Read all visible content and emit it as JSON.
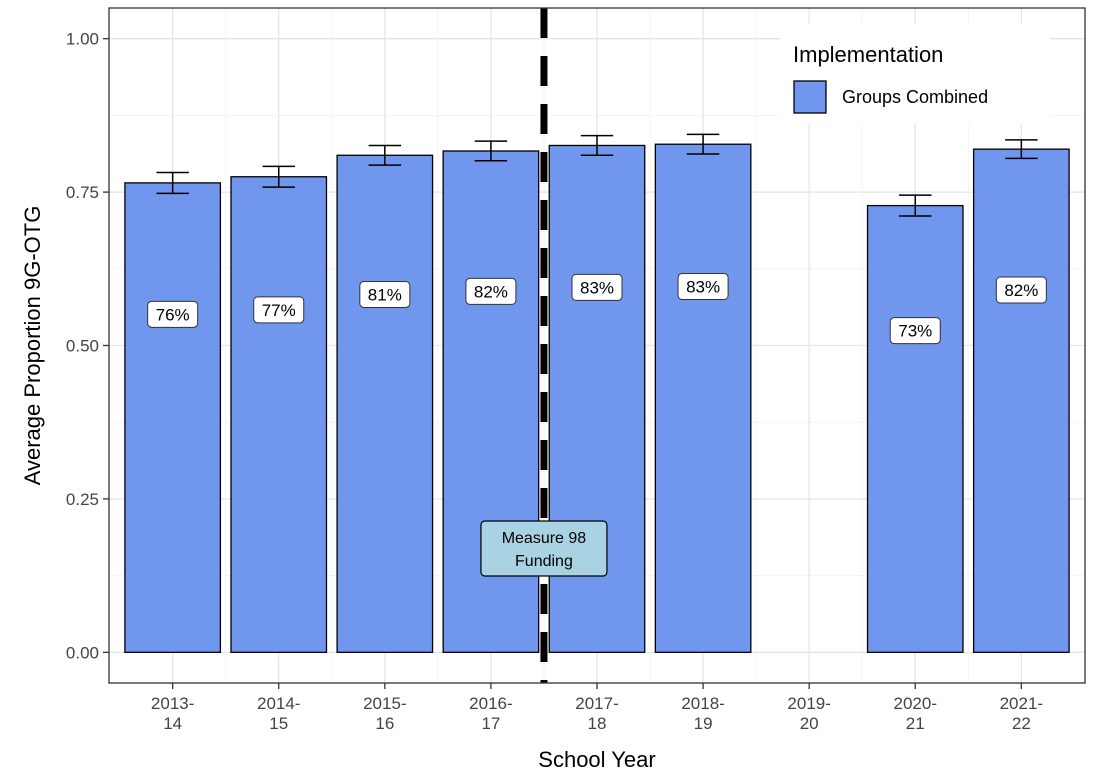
{
  "chart_data": {
    "type": "bar",
    "title": "",
    "xlabel": "School Year",
    "ylabel": "Average Proportion 9G-OTG",
    "ylim": [
      -0.05,
      1.05
    ],
    "yticks": [
      0.0,
      0.25,
      0.5,
      0.75,
      1.0
    ],
    "ytick_labels": [
      "0.00",
      "0.25",
      "0.50",
      "0.75",
      "1.00"
    ],
    "grid": true,
    "categories": [
      [
        "2013-",
        "14"
      ],
      [
        "2014-",
        "15"
      ],
      [
        "2015-",
        "16"
      ],
      [
        "2016-",
        "17"
      ],
      [
        "2017-",
        "18"
      ],
      [
        "2018-",
        "19"
      ],
      [
        "2019-",
        "20"
      ],
      [
        "2020-",
        "21"
      ],
      [
        "2021-",
        "22"
      ]
    ],
    "series": [
      {
        "name": "Groups Combined",
        "color": "#7097ED",
        "values": [
          0.765,
          0.775,
          0.81,
          0.817,
          0.826,
          0.828,
          null,
          0.728,
          0.82
        ],
        "error": [
          0.017,
          0.017,
          0.016,
          0.016,
          0.016,
          0.016,
          null,
          0.017,
          0.015
        ],
        "labels": [
          "76%",
          "77%",
          "81%",
          "82%",
          "83%",
          "83%",
          "",
          "73%",
          "82%"
        ]
      }
    ],
    "legend": {
      "title": "Implementation",
      "position": "top-right"
    },
    "vline": {
      "between_categories": [
        3,
        4
      ],
      "style": "dashed",
      "label": [
        "Measure 98",
        "Funding"
      ],
      "label_y": 0.17,
      "label_fill": "#A9D3E3"
    }
  }
}
